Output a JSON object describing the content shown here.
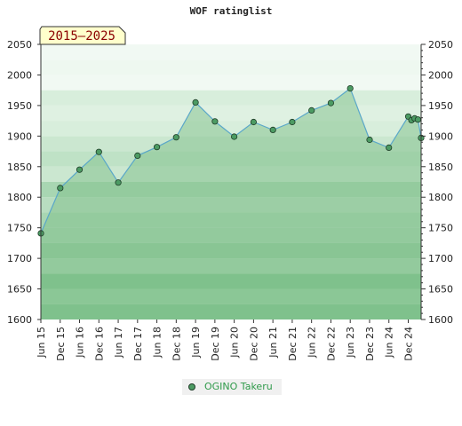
{
  "chart_data": {
    "type": "area",
    "title": "WOF ratinglist",
    "period_label": "2015–2025",
    "ylim": [
      1600,
      2050
    ],
    "y_ticks": [
      1600,
      1650,
      1700,
      1750,
      1800,
      1850,
      1900,
      1950,
      2000,
      2050
    ],
    "x_tick_labels": [
      "Jun 15",
      "Dec 15",
      "Jun 16",
      "Dec 16",
      "Jun 17",
      "Dec 17",
      "Jun 18",
      "Dec 18",
      "Jun 19",
      "Dec 19",
      "Jun 20",
      "Dec 20",
      "Jun 21",
      "Dec 21",
      "Jun 22",
      "Dec 22",
      "Jun 23",
      "Dec 23",
      "Jun 24",
      "Dec 24"
    ],
    "grid": true,
    "legend_position": "bottom",
    "series": [
      {
        "name": "OGINO Takeru",
        "x": [
          "Jun 15",
          "Dec 15",
          "Jun 16",
          "Dec 16",
          "Jun 17",
          "Dec 17",
          "Jun 18",
          "Dec 18",
          "Jun 19",
          "Dec 19",
          "Jun 20",
          "Dec 20",
          "Jun 21",
          "Dec 21",
          "Jun 22",
          "Dec 22",
          "Jun 23",
          "Dec 23",
          "Jun 24",
          "Dec 24",
          "Jan 25",
          "Feb 25",
          "Mar 25",
          "Apr 25"
        ],
        "values": [
          1741,
          1815,
          1845,
          1874,
          1824,
          1868,
          1882,
          1898,
          1955,
          1924,
          1899,
          1923,
          1910,
          1923,
          1942,
          1954,
          1978,
          1894,
          1881,
          1932,
          1926,
          1929,
          1927,
          1897
        ]
      }
    ],
    "colors": {
      "line": "#5aa7c9",
      "fill": "#7fbf8a",
      "marker": "#4c9b63",
      "legend_text": "#2f9a4a",
      "period_box": "#ffffcc",
      "period_text": "#8b0000"
    }
  }
}
